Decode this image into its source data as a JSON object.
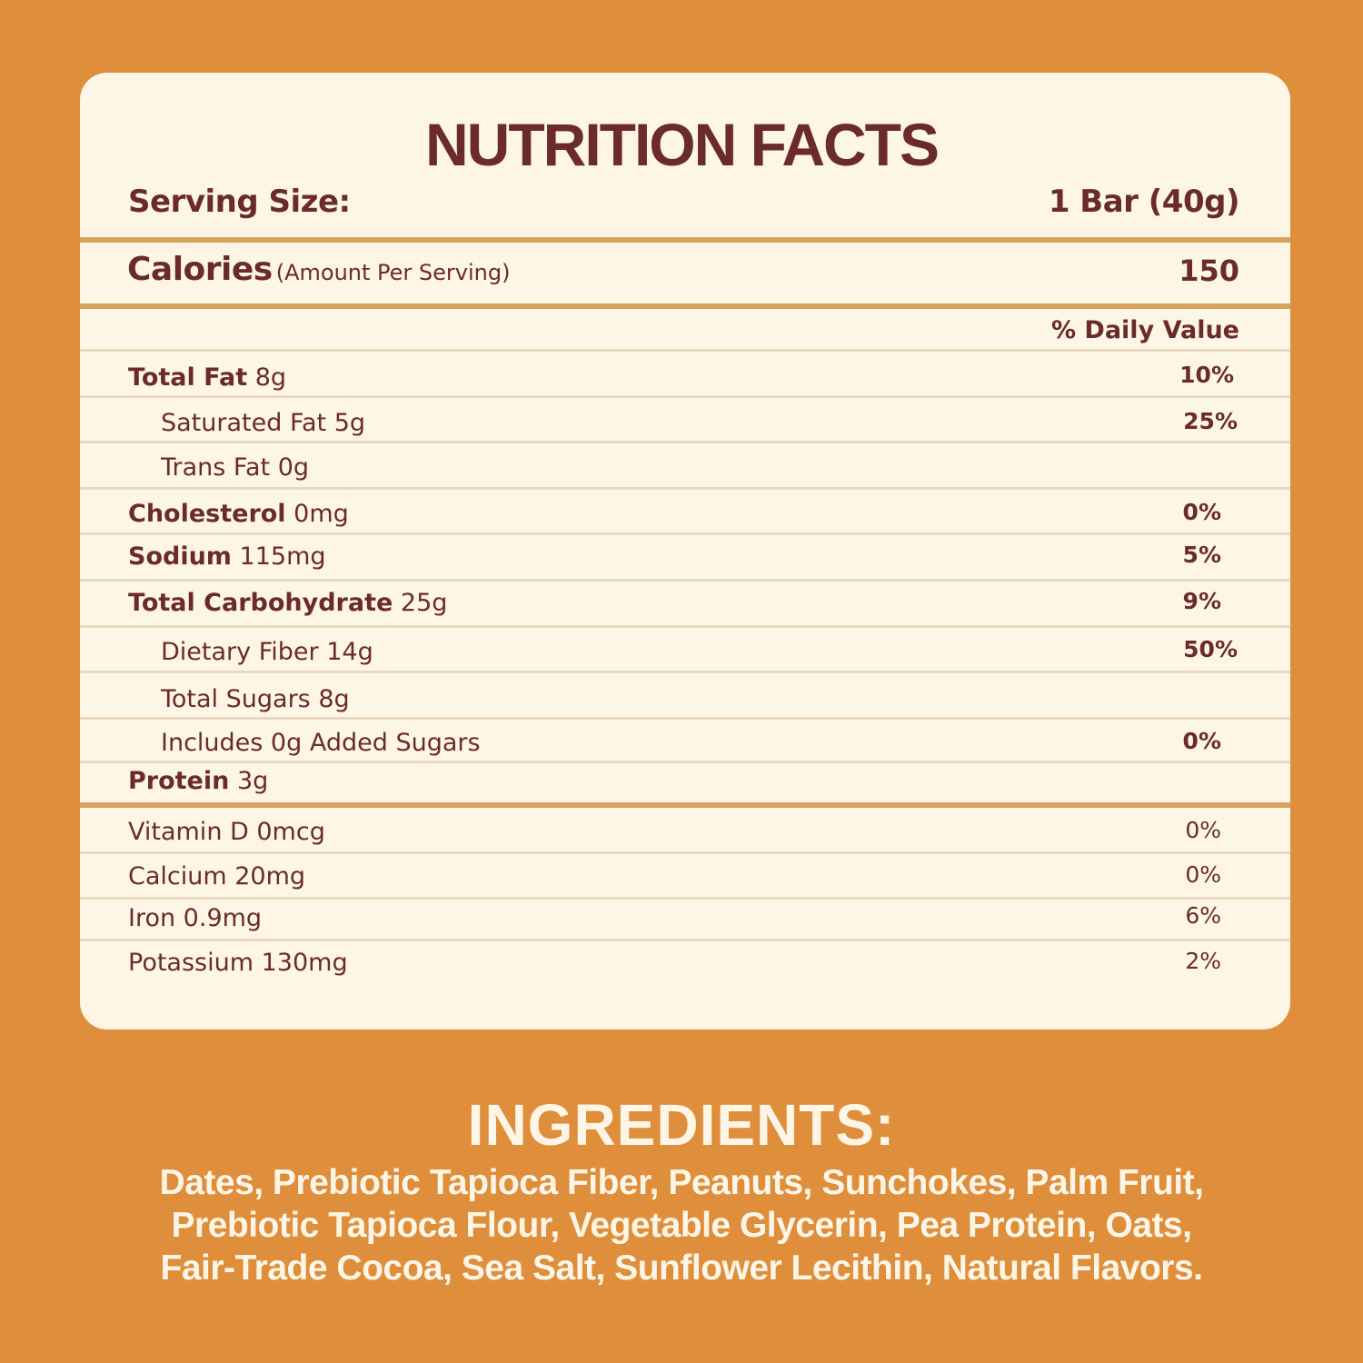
{
  "label": {
    "title": "NUTRITION FACTS",
    "serving_size_label": "Serving Size:",
    "serving_size_value": "1 Bar (40g)",
    "calories_label": "Calories",
    "calories_note": "(Amount Per Serving)",
    "calories_value": "150",
    "daily_value_header": "% Daily Value"
  },
  "nutrients": [
    {
      "name": "Total Fat",
      "amount": "8g",
      "dv": "10%"
    },
    {
      "name": "Saturated Fat",
      "amount": "5g",
      "dv": "25%"
    },
    {
      "name": "Trans Fat",
      "amount": "0g",
      "dv": ""
    },
    {
      "name": "Cholesterol",
      "amount": "0mg",
      "dv": "0%"
    },
    {
      "name": "Sodium",
      "amount": "115mg",
      "dv": "5%"
    },
    {
      "name": "Total Carbohydrate",
      "amount": "25g",
      "dv": "9%"
    },
    {
      "name": "Dietary Fiber",
      "amount": "14g",
      "dv": "50%"
    },
    {
      "name": "Total Sugars",
      "amount": "8g",
      "dv": ""
    },
    {
      "name": "Includes 0g Added Sugars",
      "amount": "",
      "dv": "0%"
    },
    {
      "name": "Protein",
      "amount": "3g",
      "dv": ""
    }
  ],
  "vitamins": [
    {
      "name": "Vitamin D 0mcg",
      "dv": "0%"
    },
    {
      "name": "Calcium 20mg",
      "dv": "0%"
    },
    {
      "name": "Iron 0.9mg",
      "dv": "6%"
    },
    {
      "name": "Potassium 130mg",
      "dv": "2%"
    }
  ],
  "ingredients": {
    "title": "INGREDIENTS:",
    "lines": [
      "Dates, Prebiotic Tapioca Fiber, Peanuts, Sunchokes, Palm Fruit,",
      "Prebiotic Tapioca Flour, Vegetable Glycerin, Pea Protein, Oats,",
      "Fair-Trade Cocoa, Sea Salt, Sunflower Lecithin, Natural Flavors."
    ]
  },
  "colors": {
    "background": "#DF8E3C",
    "panel": "#FDF6E7",
    "text_brown": "#6B2B2A",
    "rule_thick": "#D7A35D",
    "rule_thin": "#EAD9BF"
  }
}
